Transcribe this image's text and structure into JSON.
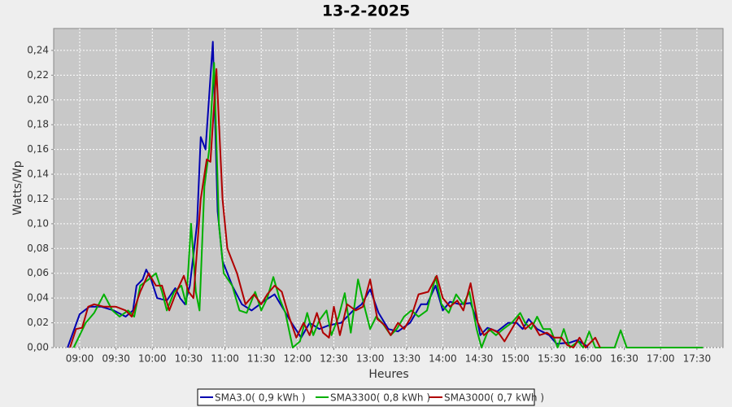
{
  "chart_data": {
    "type": "line",
    "title": "13-2-2025",
    "x_label": "Heures",
    "y_label": "Watts/Wp",
    "xlim": [
      518.5,
      1071.6
    ],
    "ylim": [
      0,
      0.2577
    ],
    "grid": true,
    "legend": "bottom",
    "xticks": [
      {
        "value": 540,
        "label": "09:00"
      },
      {
        "value": 570,
        "label": "09:30"
      },
      {
        "value": 600,
        "label": "10:00"
      },
      {
        "value": 630,
        "label": "10:30"
      },
      {
        "value": 660,
        "label": "11:00"
      },
      {
        "value": 690,
        "label": "11:30"
      },
      {
        "value": 720,
        "label": "12:00"
      },
      {
        "value": 750,
        "label": "12:30"
      },
      {
        "value": 780,
        "label": "13:00"
      },
      {
        "value": 810,
        "label": "13:30"
      },
      {
        "value": 840,
        "label": "14:00"
      },
      {
        "value": 870,
        "label": "14:30"
      },
      {
        "value": 900,
        "label": "15:00"
      },
      {
        "value": 930,
        "label": "15:30"
      },
      {
        "value": 960,
        "label": "16:00"
      },
      {
        "value": 990,
        "label": "16:30"
      },
      {
        "value": 1020,
        "label": "17:00"
      },
      {
        "value": 1050,
        "label": "17:30"
      }
    ],
    "yticks": [
      {
        "value": 0,
        "label": "0,00"
      },
      {
        "value": 0.02,
        "label": "0,02"
      },
      {
        "value": 0.04,
        "label": "0,04"
      },
      {
        "value": 0.06,
        "label": "0,06"
      },
      {
        "value": 0.08,
        "label": "0,08"
      },
      {
        "value": 0.1,
        "label": "0,10"
      },
      {
        "value": 0.12,
        "label": "0,12"
      },
      {
        "value": 0.14,
        "label": "0,14"
      },
      {
        "value": 0.16,
        "label": "0,16"
      },
      {
        "value": 0.18,
        "label": "0,18"
      },
      {
        "value": 0.2,
        "label": "0,20"
      },
      {
        "value": 0.22,
        "label": "0,22"
      },
      {
        "value": 0.24,
        "label": "0,24"
      }
    ],
    "series": [
      {
        "name": "SMA3.0( 0,9 kWh )",
        "color": "#0000b0",
        "x": [
          530,
          540,
          548,
          558,
          568,
          578,
          584,
          587,
          592,
          595,
          599,
          604,
          612,
          619,
          623,
          627,
          631,
          637,
          640,
          644,
          650,
          654,
          658,
          666,
          674,
          682,
          693,
          701,
          709,
          715,
          723,
          730,
          738,
          746,
          756,
          766,
          773,
          780,
          787,
          795,
          803,
          813,
          822,
          827,
          834,
          840,
          846,
          854,
          863,
          869,
          871,
          877,
          885,
          894,
          901,
          906,
          911,
          918,
          928,
          934,
          945,
          951,
          958,
          960
        ],
        "values": [
          0,
          0.027,
          0.033,
          0.033,
          0.03,
          0.025,
          0.03,
          0.05,
          0.055,
          0.063,
          0.055,
          0.04,
          0.038,
          0.048,
          0.04,
          0.035,
          0.05,
          0.1,
          0.17,
          0.16,
          0.247,
          0.11,
          0.07,
          0.05,
          0.035,
          0.03,
          0.038,
          0.043,
          0.03,
          0.02,
          0.008,
          0.02,
          0.015,
          0.018,
          0.02,
          0.03,
          0.035,
          0.047,
          0.028,
          0.015,
          0.013,
          0.02,
          0.035,
          0.035,
          0.05,
          0.03,
          0.037,
          0.035,
          0.036,
          0.02,
          0.01,
          0.016,
          0.013,
          0.02,
          0.02,
          0.015,
          0.023,
          0.015,
          0.01,
          0.003,
          0.004,
          0.006,
          0.002,
          0
        ]
      },
      {
        "name": "SMA3300( 0,8 kWh )",
        "color": "#00b000",
        "x": [
          535,
          545,
          552,
          560,
          567,
          573,
          580,
          585,
          590,
          597,
          603,
          608,
          612,
          618,
          624,
          628,
          632,
          636,
          639,
          643,
          647,
          651,
          655,
          659,
          666,
          672,
          678,
          685,
          690,
          695,
          700,
          705,
          710,
          716,
          722,
          728,
          733,
          738,
          744,
          748,
          754,
          759,
          764,
          770,
          776,
          780,
          785,
          790,
          797,
          802,
          808,
          814,
          820,
          827,
          834,
          839,
          845,
          851,
          857,
          862,
          868,
          872,
          878,
          884,
          890,
          897,
          904,
          908,
          913,
          918,
          923,
          929,
          935,
          940,
          945,
          952,
          956,
          961,
          966,
          982,
          987,
          992,
          1055
        ],
        "values": [
          0,
          0.02,
          0.028,
          0.043,
          0.03,
          0.025,
          0.03,
          0.025,
          0.05,
          0.055,
          0.06,
          0.045,
          0.03,
          0.045,
          0.05,
          0.035,
          0.1,
          0.045,
          0.03,
          0.13,
          0.16,
          0.23,
          0.1,
          0.06,
          0.05,
          0.03,
          0.028,
          0.045,
          0.03,
          0.04,
          0.057,
          0.04,
          0.028,
          0,
          0.005,
          0.028,
          0.01,
          0.022,
          0.03,
          0.01,
          0.025,
          0.044,
          0.012,
          0.055,
          0.03,
          0.015,
          0.025,
          0.02,
          0.01,
          0.015,
          0.025,
          0.03,
          0.025,
          0.03,
          0.057,
          0.035,
          0.028,
          0.043,
          0.035,
          0.045,
          0.015,
          0,
          0.015,
          0.01,
          0.015,
          0.02,
          0.028,
          0.02,
          0.015,
          0.025,
          0.015,
          0.015,
          0,
          0.015,
          0,
          0.005,
          0,
          0.013,
          0,
          0,
          0.014,
          0,
          0
        ]
      },
      {
        "name": "SMA3000( 0,7 kWh )",
        "color": "#b00000",
        "x": [
          532,
          537,
          542,
          547,
          552,
          560,
          570,
          578,
          583,
          590,
          597,
          603,
          608,
          614,
          620,
          626,
          630,
          634,
          640,
          645,
          648,
          653,
          658,
          662,
          670,
          677,
          684,
          690,
          695,
          701,
          707,
          713,
          719,
          725,
          730,
          736,
          741,
          746,
          750,
          755,
          761,
          768,
          774,
          780,
          786,
          792,
          797,
          803,
          808,
          814,
          820,
          828,
          835,
          840,
          846,
          852,
          857,
          863,
          869,
          874,
          880,
          886,
          891,
          897,
          903,
          908,
          914,
          920,
          926,
          932,
          938,
          943,
          948,
          953,
          958,
          962,
          966,
          970
        ],
        "values": [
          0,
          0.015,
          0.016,
          0.033,
          0.035,
          0.033,
          0.033,
          0.03,
          0.025,
          0.045,
          0.06,
          0.05,
          0.05,
          0.03,
          0.045,
          0.058,
          0.045,
          0.04,
          0.12,
          0.152,
          0.15,
          0.225,
          0.12,
          0.08,
          0.06,
          0.035,
          0.043,
          0.035,
          0.043,
          0.05,
          0.045,
          0.025,
          0.008,
          0.02,
          0.01,
          0.028,
          0.012,
          0.008,
          0.033,
          0.01,
          0.035,
          0.03,
          0.033,
          0.055,
          0.023,
          0.018,
          0.01,
          0.02,
          0.015,
          0.025,
          0.043,
          0.045,
          0.058,
          0.04,
          0.033,
          0.038,
          0.03,
          0.052,
          0.02,
          0.01,
          0.015,
          0.012,
          0.005,
          0.015,
          0.025,
          0.015,
          0.02,
          0.01,
          0.012,
          0.008,
          0.008,
          0.002,
          0,
          0.008,
          0,
          0.004,
          0.008,
          0
        ]
      }
    ]
  }
}
